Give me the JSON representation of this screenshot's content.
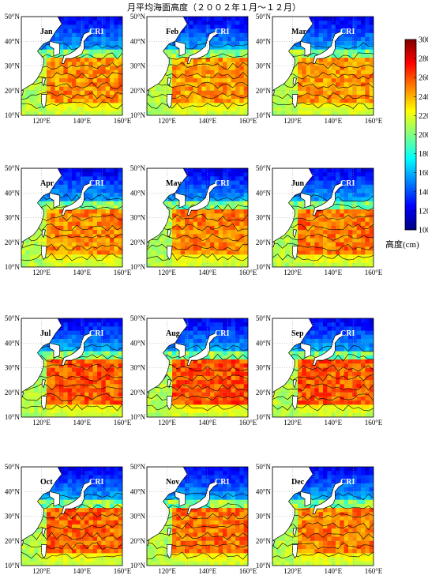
{
  "title": "月平均海面高度（２００２年１月～１２月）",
  "watermark": "CRI",
  "months": [
    "Jan",
    "Feb",
    "Mar",
    "Apr",
    "May",
    "Jun",
    "Jul",
    "Aug",
    "Sep",
    "Oct",
    "Nov",
    "Dec"
  ],
  "lat_ticks": [
    {
      "deg": 50,
      "label": "50°N"
    },
    {
      "deg": 40,
      "label": "40°N"
    },
    {
      "deg": 30,
      "label": "30°N"
    },
    {
      "deg": 20,
      "label": "20°N"
    },
    {
      "deg": 10,
      "label": "10°N"
    }
  ],
  "lon_ticks": [
    {
      "deg": 120,
      "label": "120°E"
    },
    {
      "deg": 140,
      "label": "140°E"
    },
    {
      "deg": 160,
      "label": "160°E"
    }
  ],
  "extent": {
    "lon_min": 110,
    "lon_max": 160,
    "lat_min": 10,
    "lat_max": 50
  },
  "colorbar": {
    "label": "高度(cm)",
    "min": 100,
    "max": 300,
    "ticks": [
      100,
      120,
      140,
      160,
      180,
      200,
      220,
      240,
      260,
      280,
      300
    ],
    "colors": [
      "#000080",
      "#0000ff",
      "#0080ff",
      "#00ffff",
      "#80ff80",
      "#ffff00",
      "#ff8000",
      "#ff0000",
      "#800000"
    ]
  },
  "colors": {
    "land": "#ffffff",
    "coast": "#000000",
    "grid": "#9a9a9a"
  }
}
